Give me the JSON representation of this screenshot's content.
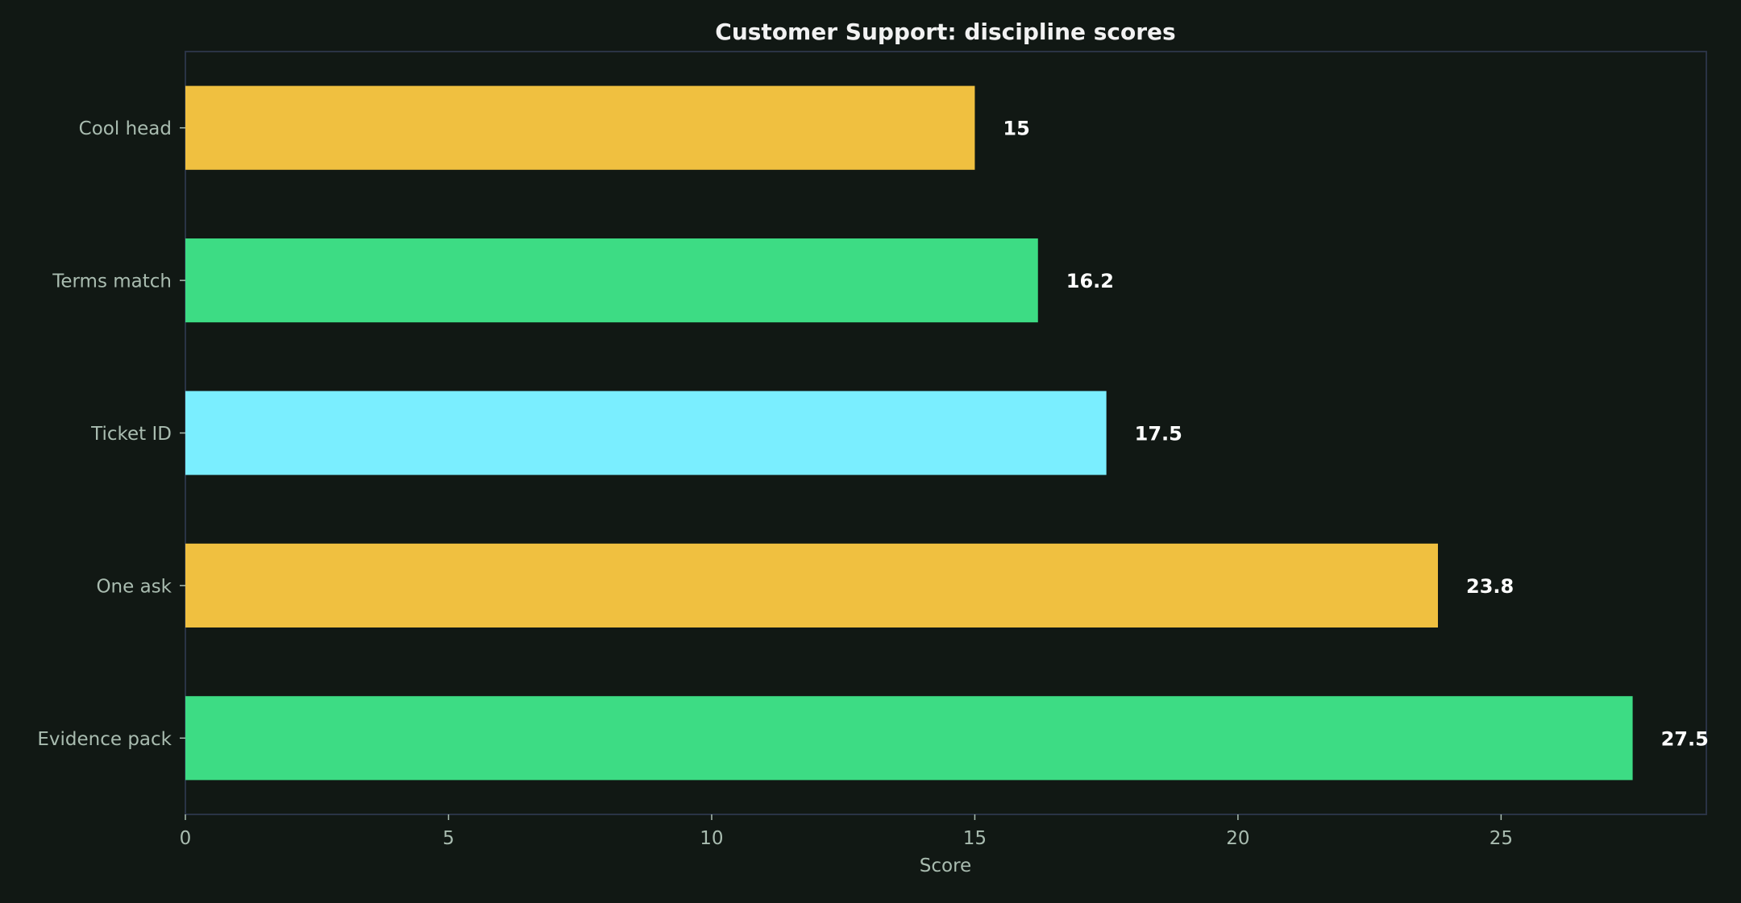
{
  "chart_data": {
    "type": "bar",
    "orientation": "horizontal",
    "title": "Customer Support: discipline scores",
    "xlabel": "Score",
    "ylabel": "",
    "categories": [
      "Cool head",
      "Terms match",
      "Ticket ID",
      "One ask",
      "Evidence pack"
    ],
    "values": [
      15,
      16.2,
      17.5,
      23.8,
      27.5
    ],
    "value_labels": [
      "15",
      "16.2",
      "17.5",
      "23.8",
      "27.5"
    ],
    "colors": [
      "#F0C040",
      "#3DDC84",
      "#7AEEFF",
      "#F0C040",
      "#3DDC84"
    ],
    "xlim": [
      0,
      28.9
    ],
    "xticks": [
      0,
      5,
      10,
      15,
      20,
      25
    ],
    "xtick_labels": [
      "0",
      "5",
      "10",
      "15",
      "20",
      "25"
    ],
    "grid": false,
    "legend": "none",
    "theme": {
      "background": "#111814",
      "frame": "#2a3345",
      "text": "#a9bcb0",
      "title": "#f2f2f2"
    }
  }
}
